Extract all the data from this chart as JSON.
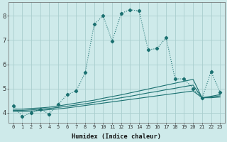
{
  "xlabel": "Humidex (Indice chaleur)",
  "xlim": [
    -0.5,
    23.5
  ],
  "ylim": [
    3.6,
    8.55
  ],
  "yticks": [
    4,
    5,
    6,
    7,
    8
  ],
  "xticks": [
    0,
    1,
    2,
    3,
    4,
    5,
    6,
    7,
    8,
    9,
    10,
    11,
    12,
    13,
    14,
    15,
    16,
    17,
    18,
    19,
    20,
    21,
    22,
    23
  ],
  "bg_color": "#ceeaea",
  "line_color": "#1a7070",
  "grid_color": "#aacece",
  "main_series": {
    "x": [
      0,
      1,
      2,
      3,
      4,
      5,
      6,
      7,
      8,
      9,
      10,
      11,
      12,
      13,
      14,
      15,
      16,
      17,
      18,
      19,
      20,
      21,
      22,
      23
    ],
    "y": [
      4.3,
      3.85,
      4.0,
      4.15,
      3.95,
      4.35,
      4.75,
      4.9,
      5.65,
      7.65,
      8.0,
      6.95,
      8.1,
      8.25,
      8.2,
      6.6,
      6.65,
      7.1,
      5.4,
      5.4,
      5.0,
      4.6,
      5.7,
      4.85
    ]
  },
  "flat_lines": [
    {
      "x": [
        0,
        1,
        2,
        3,
        4,
        5,
        6,
        7,
        8,
        9,
        10,
        11,
        12,
        13,
        14,
        15,
        16,
        17,
        18,
        19,
        20,
        21,
        22,
        23
      ],
      "y": [
        4.05,
        4.05,
        4.07,
        4.1,
        4.13,
        4.16,
        4.2,
        4.25,
        4.3,
        4.35,
        4.4,
        4.45,
        4.5,
        4.55,
        4.6,
        4.65,
        4.7,
        4.75,
        4.8,
        4.85,
        4.9,
        4.62,
        4.62,
        4.65
      ]
    },
    {
      "x": [
        0,
        1,
        2,
        3,
        4,
        5,
        6,
        7,
        8,
        9,
        10,
        11,
        12,
        13,
        14,
        15,
        16,
        17,
        18,
        19,
        20,
        21,
        22,
        23
      ],
      "y": [
        4.1,
        4.1,
        4.12,
        4.15,
        4.18,
        4.22,
        4.27,
        4.32,
        4.37,
        4.43,
        4.5,
        4.56,
        4.62,
        4.68,
        4.75,
        4.82,
        4.88,
        4.95,
        5.01,
        5.08,
        5.14,
        4.62,
        4.65,
        4.7
      ]
    },
    {
      "x": [
        0,
        1,
        2,
        3,
        4,
        5,
        6,
        7,
        8,
        9,
        10,
        11,
        12,
        13,
        14,
        15,
        16,
        17,
        18,
        19,
        20,
        21,
        22,
        23
      ],
      "y": [
        4.15,
        4.15,
        4.18,
        4.2,
        4.23,
        4.28,
        4.34,
        4.4,
        4.46,
        4.52,
        4.6,
        4.67,
        4.74,
        4.82,
        4.9,
        4.98,
        5.06,
        5.14,
        5.22,
        5.3,
        5.38,
        4.62,
        4.68,
        4.75
      ]
    }
  ]
}
